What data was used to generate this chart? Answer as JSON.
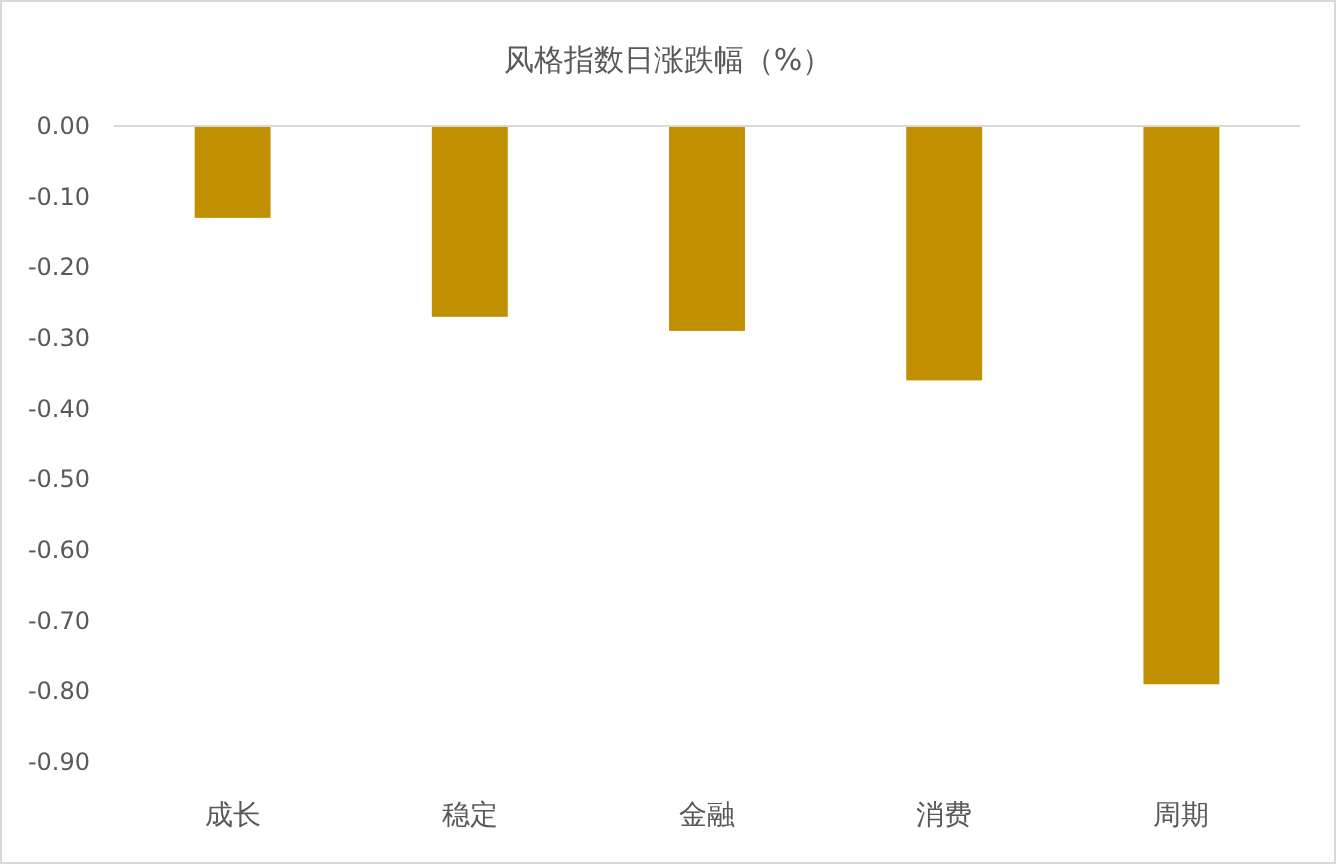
{
  "chart_data": {
    "type": "bar",
    "title": "风格指数日涨跌幅（%）",
    "categories": [
      "成长",
      "稳定",
      "金融",
      "消费",
      "周期"
    ],
    "values": [
      -0.13,
      -0.27,
      -0.29,
      -0.36,
      -0.79
    ],
    "color": "#c09000",
    "ylim": [
      -0.9,
      0
    ],
    "yticks": [
      {
        "value": 0,
        "label": "0.00"
      },
      {
        "value": -0.1,
        "label": "-0.10"
      },
      {
        "value": -0.2,
        "label": "-0.20"
      },
      {
        "value": -0.3,
        "label": "-0.30"
      },
      {
        "value": -0.4,
        "label": "-0.40"
      },
      {
        "value": -0.5,
        "label": "-0.50"
      },
      {
        "value": -0.6,
        "label": "-0.60"
      },
      {
        "value": -0.7,
        "label": "-0.70"
      },
      {
        "value": -0.8,
        "label": "-0.80"
      },
      {
        "value": -0.9,
        "label": "-0.90"
      }
    ]
  }
}
